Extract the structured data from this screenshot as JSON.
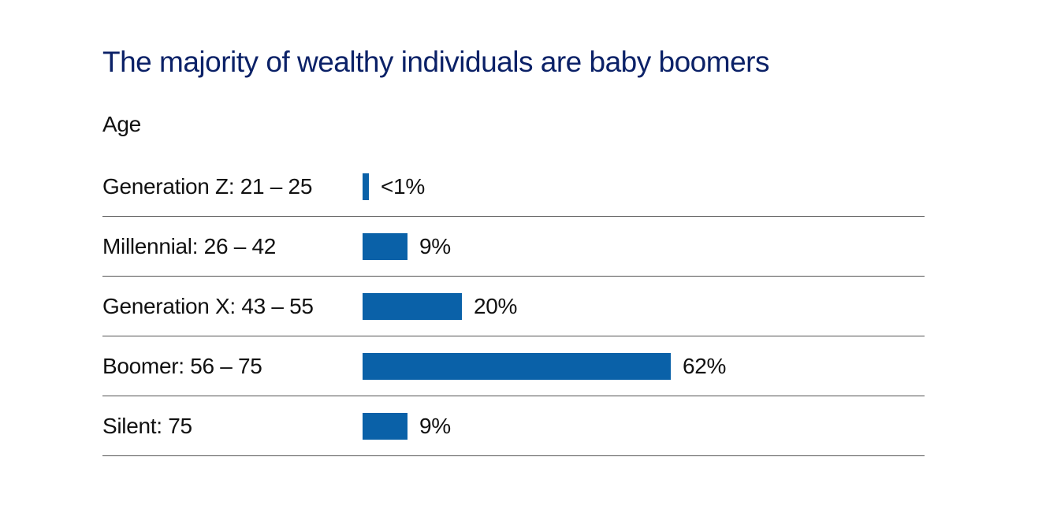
{
  "chart_data": {
    "type": "bar",
    "orientation": "horizontal",
    "title": "The majority of wealthy individuals are baby boomers",
    "axis_label": "Age",
    "categories": [
      "Generation Z: 21 – 25",
      "Millennial: 26 – 42",
      "Generation X: 43 – 55",
      "Boomer: 56 – 75",
      "Silent: 75"
    ],
    "values": [
      0.8,
      9,
      20,
      62,
      9
    ],
    "value_labels": [
      "<1%",
      "9%",
      "20%",
      "62%",
      "9%"
    ],
    "xlim": [
      0,
      100
    ],
    "grid": "horizontal-row-separators-only",
    "legend": "none",
    "colors": {
      "bar": "#0a61a8",
      "title": "#0b2167",
      "text": "#111111",
      "separator": "#545454",
      "background": "#ffffff"
    }
  }
}
